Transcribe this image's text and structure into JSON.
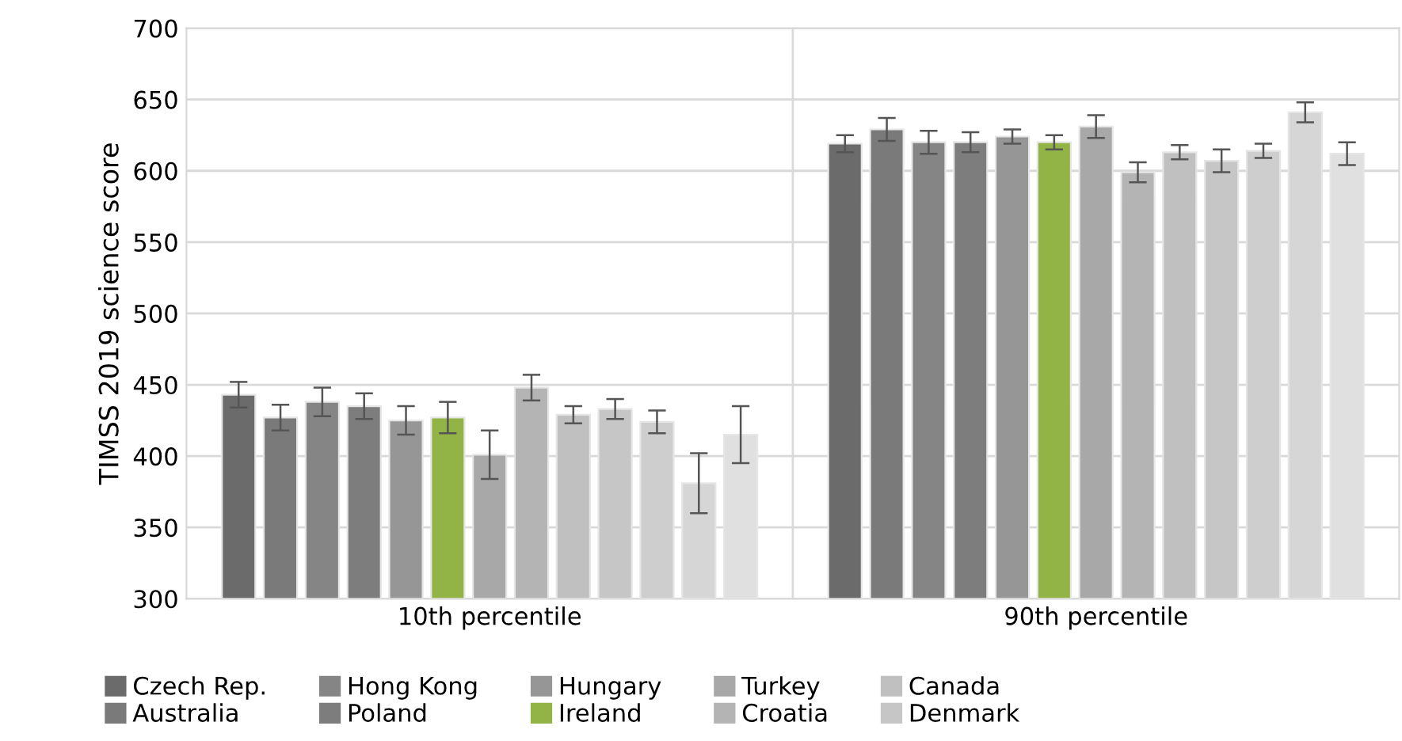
{
  "chart_data": {
    "type": "bar",
    "ylabel": "TIMSS 2019 science score",
    "categories": [
      "10th percentile",
      "90th percentile"
    ],
    "ylim": [
      300,
      700
    ],
    "yticks": [
      300,
      350,
      400,
      450,
      500,
      550,
      600,
      650,
      700
    ],
    "grid": true,
    "legend": "bottom",
    "series": [
      {
        "name": "Czech Rep.",
        "color": "#6b6b6b",
        "values": [
          443,
          619
        ],
        "errors": [
          9,
          6
        ]
      },
      {
        "name": "Australia",
        "color": "#7a7a7a",
        "values": [
          427,
          629
        ],
        "errors": [
          9,
          8
        ]
      },
      {
        "name": "Hong Kong",
        "color": "#858585",
        "values": [
          438,
          620
        ],
        "errors": [
          10,
          8
        ]
      },
      {
        "name": "Poland",
        "color": "#7d7d7d",
        "values": [
          435,
          620
        ],
        "errors": [
          9,
          7
        ]
      },
      {
        "name": "Hungary",
        "color": "#969696",
        "values": [
          425,
          624
        ],
        "errors": [
          10,
          5
        ]
      },
      {
        "name": "Ireland",
        "color": "#92b447",
        "values": [
          427,
          620
        ],
        "errors": [
          11,
          5
        ]
      },
      {
        "name": "Turkey",
        "color": "#a8a8a8",
        "values": [
          401,
          631
        ],
        "errors": [
          17,
          8
        ]
      },
      {
        "name": "Croatia",
        "color": "#b4b4b4",
        "values": [
          448,
          599
        ],
        "errors": [
          9,
          7
        ]
      },
      {
        "name": "Canada",
        "color": "#c0c0c0",
        "values": [
          429,
          613
        ],
        "errors": [
          6,
          5
        ]
      },
      {
        "name": "Denmark",
        "color": "#c6c6c6",
        "values": [
          433,
          607
        ],
        "errors": [
          7,
          8
        ]
      },
      {
        "color": "#cecece",
        "values": [
          424,
          614
        ],
        "errors": [
          8,
          5
        ]
      },
      {
        "color": "#d6d6d6",
        "values": [
          381,
          641
        ],
        "errors": [
          21,
          7
        ]
      },
      {
        "color": "#e0e0e0",
        "values": [
          415,
          612
        ],
        "errors": [
          20,
          8
        ]
      }
    ]
  }
}
